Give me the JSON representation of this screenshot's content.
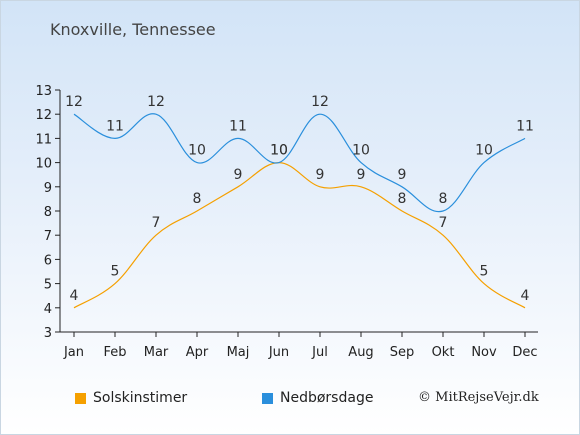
{
  "header": {
    "title": "Knoxville, Tennessee"
  },
  "chart_data": {
    "type": "line",
    "title": "Knoxville, Tennessee",
    "categories": [
      "Jan",
      "Feb",
      "Mar",
      "Apr",
      "Maj",
      "Jun",
      "Jul",
      "Aug",
      "Sep",
      "Okt",
      "Nov",
      "Dec"
    ],
    "ylim": [
      3,
      13
    ],
    "yticks": [
      3,
      4,
      5,
      6,
      7,
      8,
      9,
      10,
      11,
      12,
      13
    ],
    "series": [
      {
        "name": "Solskinstimer",
        "color": "#f5a000",
        "values": [
          4,
          5,
          7,
          8,
          9,
          10,
          9,
          9,
          8,
          7,
          5,
          4
        ]
      },
      {
        "name": "Nedbørsdage",
        "color": "#2a8fdc",
        "values": [
          12,
          11,
          12,
          10,
          11,
          10,
          12,
          10,
          9,
          8,
          10,
          11
        ]
      }
    ],
    "grid": false,
    "legend": "bottom-left"
  },
  "footer": {
    "copyright": "© MitRejseVejr.dk"
  }
}
